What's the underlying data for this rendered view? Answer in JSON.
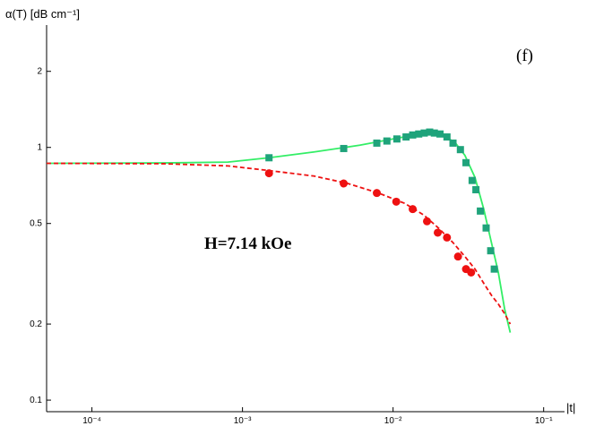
{
  "chart_data": {
    "type": "scatter",
    "ylabel": "α(T) [dB cm⁻¹]",
    "xlabel": "|t|",
    "panel_label": "(f)",
    "annotation": "H=7.14 kOe",
    "x_scale": "log",
    "y_scale": "log",
    "xlim": [
      5e-05,
      0.12
    ],
    "ylim": [
      0.09,
      3.0
    ],
    "x_ticks": [
      {
        "value": 0.0001,
        "label": "10⁻⁴"
      },
      {
        "value": 0.001,
        "label": "10⁻³"
      },
      {
        "value": 0.01,
        "label": "10⁻²"
      },
      {
        "value": 0.1,
        "label": "10⁻¹"
      }
    ],
    "y_ticks": [
      {
        "value": 0.1,
        "label": "0.1"
      },
      {
        "value": 0.2,
        "label": "0.2"
      },
      {
        "value": 0.5,
        "label": "0.5"
      },
      {
        "value": 1,
        "label": "1"
      },
      {
        "value": 2,
        "label": "2"
      }
    ],
    "grid": false,
    "colors": {
      "squares": "#1fa37b",
      "solid_line": "#33ee66",
      "circles": "#ee1111",
      "dashed_line": "#ee1111"
    },
    "series": [
      {
        "marker": "square",
        "color": "#1fa37b",
        "points": [
          [
            0.0015,
            0.91
          ],
          [
            0.0047,
            0.99
          ],
          [
            0.0078,
            1.04
          ],
          [
            0.0091,
            1.06
          ],
          [
            0.0106,
            1.08
          ],
          [
            0.0122,
            1.1
          ],
          [
            0.0135,
            1.12
          ],
          [
            0.0148,
            1.13
          ],
          [
            0.0161,
            1.14
          ],
          [
            0.0175,
            1.15
          ],
          [
            0.0188,
            1.14
          ],
          [
            0.0205,
            1.13
          ],
          [
            0.0228,
            1.1
          ],
          [
            0.025,
            1.04
          ],
          [
            0.028,
            0.98
          ],
          [
            0.0305,
            0.87
          ],
          [
            0.0335,
            0.74
          ],
          [
            0.0355,
            0.68
          ],
          [
            0.038,
            0.56
          ],
          [
            0.0415,
            0.48
          ],
          [
            0.0445,
            0.39
          ],
          [
            0.047,
            0.33
          ]
        ]
      },
      {
        "marker": "circle",
        "color": "#ee1111",
        "points": [
          [
            0.0015,
            0.79
          ],
          [
            0.0047,
            0.72
          ],
          [
            0.0078,
            0.66
          ],
          [
            0.0105,
            0.61
          ],
          [
            0.0135,
            0.57
          ],
          [
            0.0168,
            0.51
          ],
          [
            0.0198,
            0.46
          ],
          [
            0.0228,
            0.44
          ],
          [
            0.027,
            0.37
          ],
          [
            0.0305,
            0.33
          ],
          [
            0.033,
            0.32
          ]
        ]
      },
      {
        "line": "solid",
        "color": "#33ee66",
        "points": [
          [
            5e-05,
            0.865
          ],
          [
            0.0003,
            0.868
          ],
          [
            0.0008,
            0.875
          ],
          [
            0.0015,
            0.91
          ],
          [
            0.003,
            0.96
          ],
          [
            0.006,
            1.02
          ],
          [
            0.01,
            1.08
          ],
          [
            0.014,
            1.12
          ],
          [
            0.018,
            1.13
          ],
          [
            0.022,
            1.11
          ],
          [
            0.026,
            1.04
          ],
          [
            0.03,
            0.93
          ],
          [
            0.035,
            0.76
          ],
          [
            0.04,
            0.57
          ],
          [
            0.045,
            0.42
          ],
          [
            0.05,
            0.32
          ],
          [
            0.055,
            0.23
          ],
          [
            0.06,
            0.185
          ]
        ]
      },
      {
        "line": "dashed",
        "color": "#ee1111",
        "points": [
          [
            5e-05,
            0.865
          ],
          [
            0.0003,
            0.862
          ],
          [
            0.0008,
            0.845
          ],
          [
            0.0015,
            0.81
          ],
          [
            0.003,
            0.77
          ],
          [
            0.005,
            0.72
          ],
          [
            0.008,
            0.66
          ],
          [
            0.012,
            0.6
          ],
          [
            0.016,
            0.54
          ],
          [
            0.02,
            0.48
          ],
          [
            0.025,
            0.42
          ],
          [
            0.03,
            0.37
          ],
          [
            0.035,
            0.33
          ],
          [
            0.04,
            0.29
          ],
          [
            0.045,
            0.26
          ],
          [
            0.05,
            0.24
          ],
          [
            0.055,
            0.22
          ],
          [
            0.06,
            0.2
          ]
        ]
      }
    ]
  }
}
